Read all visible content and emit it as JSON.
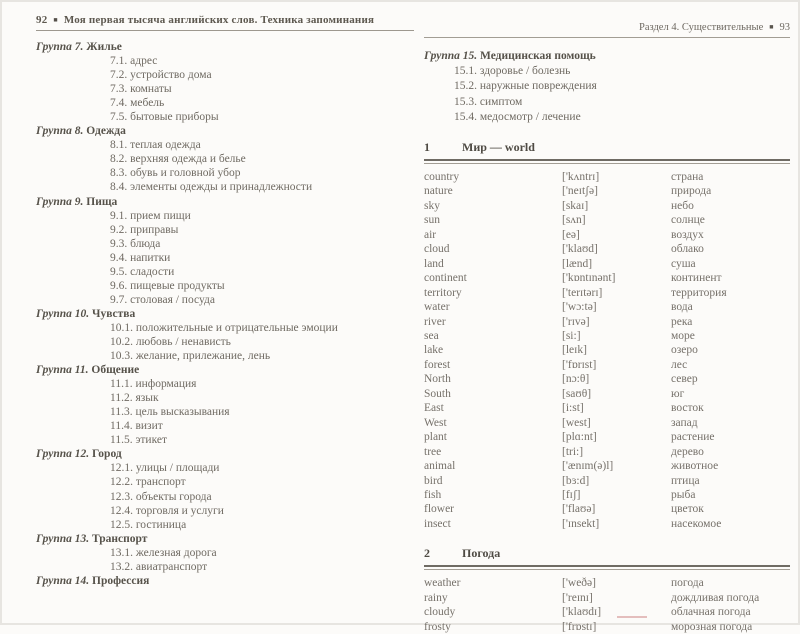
{
  "left_page": {
    "page_number": "92",
    "bullet": "■",
    "book_title": "Моя первая тысяча английских слов. Техника запоминания",
    "toc": [
      {
        "type": "group",
        "num": "Группа 7.",
        "name": "Жилье"
      },
      {
        "type": "item",
        "text": "7.1. адрес"
      },
      {
        "type": "item",
        "text": "7.2. устройство дома"
      },
      {
        "type": "item",
        "text": "7.3. комнаты"
      },
      {
        "type": "item",
        "text": "7.4. мебель"
      },
      {
        "type": "item",
        "text": "7.5. бытовые приборы"
      },
      {
        "type": "group",
        "num": "Группа 8.",
        "name": "Одежда"
      },
      {
        "type": "item",
        "text": "8.1. теплая одежда"
      },
      {
        "type": "item",
        "text": "8.2. верхняя одежда и белье"
      },
      {
        "type": "item",
        "text": "8.3. обувь и головной убор"
      },
      {
        "type": "item",
        "text": "8.4. элементы одежды и принадлежности"
      },
      {
        "type": "group",
        "num": "Группа 9.",
        "name": "Пища"
      },
      {
        "type": "item",
        "text": "9.1. прием пищи"
      },
      {
        "type": "item",
        "text": "9.2. приправы"
      },
      {
        "type": "item",
        "text": "9.3. блюда"
      },
      {
        "type": "item",
        "text": "9.4. напитки"
      },
      {
        "type": "item",
        "text": "9.5. сладости"
      },
      {
        "type": "item",
        "text": "9.6. пищевые продукты"
      },
      {
        "type": "item",
        "text": "9.7. столовая / посуда"
      },
      {
        "type": "group",
        "num": "Группа 10.",
        "name": "Чувства"
      },
      {
        "type": "item",
        "text": "10.1. положительные и отрицательные эмоции"
      },
      {
        "type": "item",
        "text": "10.2. любовь / ненависть"
      },
      {
        "type": "item",
        "text": "10.3. желание, прилежание, лень"
      },
      {
        "type": "group",
        "num": "Группа 11.",
        "name": "Общение"
      },
      {
        "type": "item",
        "text": "11.1. информация"
      },
      {
        "type": "item",
        "text": "11.2. язык"
      },
      {
        "type": "item",
        "text": "11.3. цель высказывания"
      },
      {
        "type": "item",
        "text": "11.4. визит"
      },
      {
        "type": "item",
        "text": "11.5. этикет"
      },
      {
        "type": "group",
        "num": "Группа 12.",
        "name": "Город"
      },
      {
        "type": "item",
        "text": "12.1. улицы / площади"
      },
      {
        "type": "item",
        "text": "12.2. транспорт"
      },
      {
        "type": "item",
        "text": "12.3. объекты города"
      },
      {
        "type": "item",
        "text": "12.4. торговля и услуги"
      },
      {
        "type": "item",
        "text": "12.5. гостиница"
      },
      {
        "type": "group",
        "num": "Группа 13.",
        "name": "Транспорт"
      },
      {
        "type": "item",
        "text": "13.1. железная дорога"
      },
      {
        "type": "item",
        "text": "13.2. авиатранспорт"
      },
      {
        "type": "group",
        "num": "Группа 14.",
        "name": "Профессия"
      }
    ]
  },
  "right_page": {
    "section_title": "Раздел 4. Существительные",
    "bullet": "■",
    "page_number": "93",
    "toc": [
      {
        "type": "group",
        "num": "Группа 15.",
        "name": "Медицинская помощь"
      },
      {
        "type": "item",
        "text": "15.1. здоровье / болезнь"
      },
      {
        "type": "item",
        "text": "15.2. наружные повреждения"
      },
      {
        "type": "item",
        "text": "15.3. симптом"
      },
      {
        "type": "item",
        "text": "15.4. медосмотр / лечение"
      }
    ],
    "vocab_sections": [
      {
        "num": "1",
        "title": "Мир — world",
        "entries": [
          {
            "en": "country",
            "ipa": "['kʌntrɪ]",
            "ru": "страна"
          },
          {
            "en": "nature",
            "ipa": "['neɪtʃə]",
            "ru": "природа"
          },
          {
            "en": "sky",
            "ipa": "[skaɪ]",
            "ru": "небо"
          },
          {
            "en": "sun",
            "ipa": "[sʌn]",
            "ru": "солнце"
          },
          {
            "en": "air",
            "ipa": "[eə]",
            "ru": "воздух"
          },
          {
            "en": "cloud",
            "ipa": "['klaʊd]",
            "ru": "облако"
          },
          {
            "en": "land",
            "ipa": "[lænd]",
            "ru": "суша"
          },
          {
            "en": "continent",
            "ipa": "['kɒntɪnənt]",
            "ru": "континент"
          },
          {
            "en": "territory",
            "ipa": "['terɪtərɪ]",
            "ru": "территория"
          },
          {
            "en": "water",
            "ipa": "['wɔ:tə]",
            "ru": "вода"
          },
          {
            "en": "river",
            "ipa": "['rɪvə]",
            "ru": "река"
          },
          {
            "en": "sea",
            "ipa": "[si:]",
            "ru": "море"
          },
          {
            "en": "lake",
            "ipa": "[leɪk]",
            "ru": "озеро"
          },
          {
            "en": "forest",
            "ipa": "['fɒrɪst]",
            "ru": "лес"
          },
          {
            "en": "North",
            "ipa": "[nɔ:θ]",
            "ru": "север"
          },
          {
            "en": "South",
            "ipa": "[saʊθ]",
            "ru": "юг"
          },
          {
            "en": "East",
            "ipa": "[i:st]",
            "ru": "восток"
          },
          {
            "en": "West",
            "ipa": "[west]",
            "ru": "запад"
          },
          {
            "en": "plant",
            "ipa": "[plɑ:nt]",
            "ru": "растение"
          },
          {
            "en": "tree",
            "ipa": "[tri:]",
            "ru": "дерево"
          },
          {
            "en": "animal",
            "ipa": "['ænɪm(ə)l]",
            "ru": "животное"
          },
          {
            "en": "bird",
            "ipa": "[bɜ:d]",
            "ru": "птица"
          },
          {
            "en": "fish",
            "ipa": "[fɪʃ]",
            "ru": "рыба"
          },
          {
            "en": "flower",
            "ipa": "['flaʊə]",
            "ru": "цветок"
          },
          {
            "en": "insect",
            "ipa": "['ɪnsekt]",
            "ru": "насекомое"
          }
        ]
      },
      {
        "num": "2",
        "title": "Погода",
        "entries": [
          {
            "en": "weather",
            "ipa": "['weðə]",
            "ru": "погода"
          },
          {
            "en": "rainy",
            "ipa": "['reɪnɪ]",
            "ru": "дождливая погода"
          },
          {
            "en": "cloudy",
            "ipa": "['klaʊdɪ]",
            "ru": "облачная погода"
          },
          {
            "en": "frosty",
            "ipa": "['frɒstɪ]",
            "ru": "морозная погода"
          }
        ]
      }
    ]
  }
}
